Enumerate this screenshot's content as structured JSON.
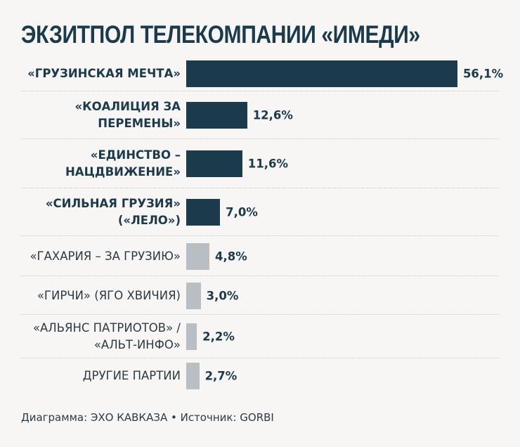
{
  "title": "ЭКЗИТПОЛ ТЕЛЕКОМПАНИИ «ИМЕДИ»",
  "footer": "Диаграмма: ЭХО КАВКАЗА • Источник: GORBI",
  "colors": {
    "highlight": "#1b3a4b",
    "other": "#b8bec2",
    "background": "#f7f6f4"
  },
  "chart_data": {
    "type": "bar",
    "orientation": "horizontal",
    "title": "ЭКЗИТПОЛ ТЕЛЕКОМПАНИИ «ИМЕДИ»",
    "categories": [
      "«ГРУЗИНСКАЯ МЕЧТА»",
      "«КОАЛИЦИЯ ЗА\nПЕРЕМЕНЫ»",
      "«ЕДИНСТВО –\nНАЦДВИЖЕНИЕ»",
      "«СИЛЬНАЯ ГРУЗИЯ»\n(«ЛЕЛО»)",
      "«ГАХАРИЯ – ЗА ГРУЗИЮ»",
      "«ГИРЧИ» (ЯГО ХВИЧИЯ)",
      "«АЛЬЯНС ПАТРИОТОВ» /\n«АЛЬТ-ИНФО»",
      "ДРУГИЕ ПАРТИИ"
    ],
    "values": [
      56.1,
      12.6,
      11.6,
      7.0,
      4.8,
      3.0,
      2.2,
      2.7
    ],
    "value_labels": [
      "56,1%",
      "12,6%",
      "11,6%",
      "7,0%",
      "4,8%",
      "3,0%",
      "2,2%",
      "2,7%"
    ],
    "highlighted": [
      true,
      true,
      true,
      true,
      false,
      false,
      false,
      false
    ],
    "unit": "%",
    "grid": false,
    "legend": "none"
  }
}
